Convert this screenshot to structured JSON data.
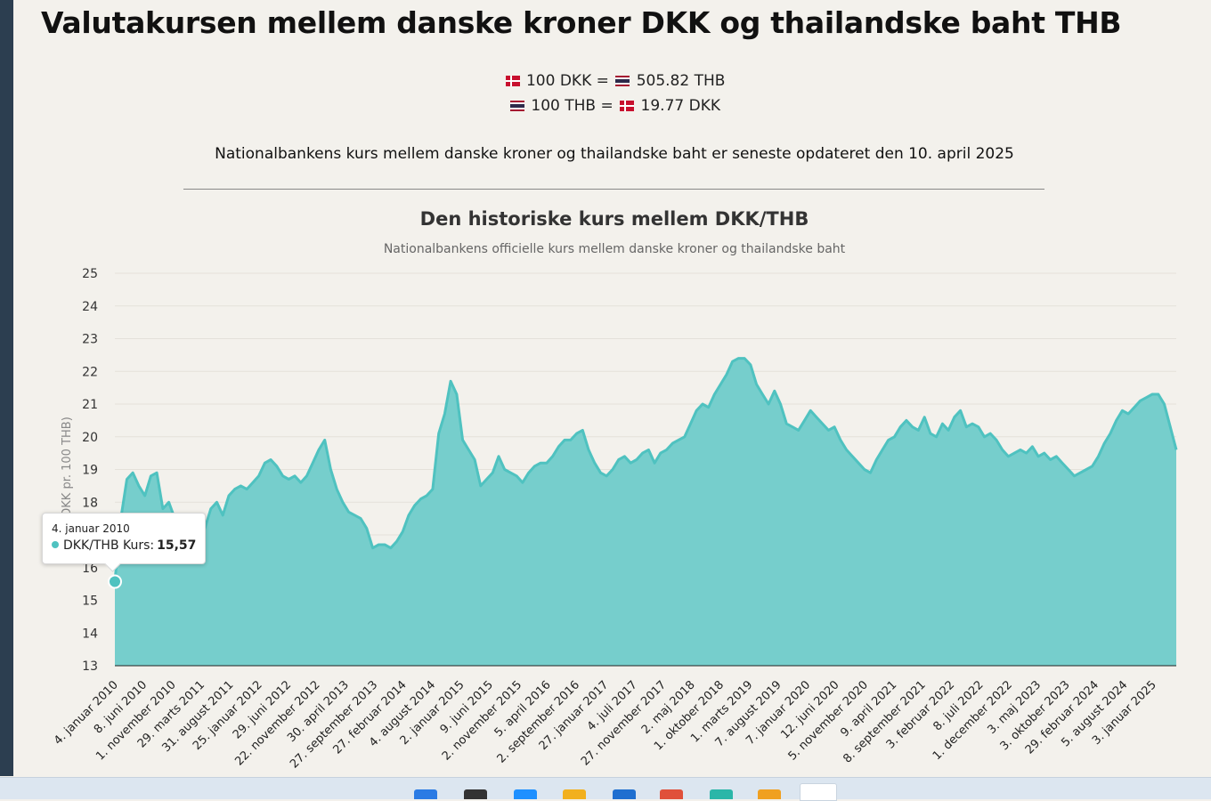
{
  "page": {
    "title": "Valutakursen mellem danske kroner DKK og thailandske baht THB",
    "rates": [
      {
        "left_flag": "flag-denmark-icon",
        "left": "100 DKK =",
        "right_flag": "flag-thailand-icon",
        "right": "505.82 THB"
      },
      {
        "left_flag": "flag-thailand-icon",
        "left": "100 THB =",
        "right_flag": "flag-denmark-icon",
        "right": "19.77 DKK"
      }
    ],
    "update_note": "Nationalbankens kurs mellem danske kroner og thailandske baht er seneste opdateret den 10. april 2025"
  },
  "tooltip": {
    "date": "4. januar 2010",
    "label": "DKK/THB Kurs:",
    "value": "15,57"
  },
  "taskbar": {
    "icons": [
      "windows-start-icon",
      "search-icon",
      "edge-icon",
      "file-explorer-icon",
      "store-icon",
      "notepad-icon",
      "chrome-icon",
      "photos-icon",
      "app-icon"
    ]
  },
  "chart_data": {
    "type": "area",
    "title": "Den historiske kurs mellem DKK/THB",
    "subtitle": "Nationalbankens officielle kurs mellem danske kroner og thailandske baht",
    "xlabel": "",
    "ylabel": "(DKK pr. 100 THB)",
    "ylim": [
      13,
      25
    ],
    "y_ticks": [
      13,
      14,
      15,
      16,
      17,
      18,
      19,
      20,
      21,
      22,
      23,
      24,
      25
    ],
    "grid": true,
    "legend": "none",
    "x_ticks": [
      "4. januar 2010",
      "8. juni 2010",
      "1. november 2010",
      "29. marts 2011",
      "31. august 2011",
      "25. januar 2012",
      "29. juni 2012",
      "22. november 2012",
      "30. april 2013",
      "27. september 2013",
      "27. februar 2014",
      "4. august 2014",
      "2. januar 2015",
      "9. juni 2015",
      "2. november 2015",
      "5. april 2016",
      "2. september 2016",
      "27. januar 2017",
      "4. juli 2017",
      "27. november 2017",
      "2. maj 2018",
      "1. oktober 2018",
      "1. marts 2019",
      "7. august 2019",
      "7. januar 2020",
      "12. juni 2020",
      "5. november 2020",
      "9. april 2021",
      "8. september 2021",
      "3. februar 2022",
      "8. juli 2022",
      "1. december 2022",
      "3. maj 2023",
      "3. oktober 2023",
      "29. februar 2024",
      "5. august 2024",
      "3. januar 2025"
    ],
    "series": [
      {
        "name": "DKK/THB Kurs",
        "color": "#4fc2c0",
        "fill": "#76cecc",
        "values": [
          15.57,
          17.5,
          18.7,
          18.9,
          18.5,
          18.2,
          18.8,
          18.9,
          17.8,
          18.0,
          17.5,
          17.3,
          17.0,
          16.8,
          17.5,
          17.2,
          17.8,
          18.0,
          17.6,
          18.2,
          18.4,
          18.5,
          18.4,
          18.6,
          18.8,
          19.2,
          19.3,
          19.1,
          18.8,
          18.7,
          18.8,
          18.6,
          18.8,
          19.2,
          19.6,
          19.9,
          19.0,
          18.4,
          18.0,
          17.7,
          17.6,
          17.5,
          17.2,
          16.6,
          16.7,
          16.7,
          16.6,
          16.8,
          17.1,
          17.6,
          17.9,
          18.1,
          18.2,
          18.4,
          20.1,
          20.7,
          21.7,
          21.3,
          19.9,
          19.6,
          19.3,
          18.5,
          18.7,
          18.9,
          19.4,
          19.0,
          18.9,
          18.8,
          18.6,
          18.9,
          19.1,
          19.2,
          19.2,
          19.4,
          19.7,
          19.9,
          19.9,
          20.1,
          20.2,
          19.6,
          19.2,
          18.9,
          18.8,
          19.0,
          19.3,
          19.4,
          19.2,
          19.3,
          19.5,
          19.6,
          19.2,
          19.5,
          19.6,
          19.8,
          19.9,
          20.0,
          20.4,
          20.8,
          21.0,
          20.9,
          21.3,
          21.6,
          21.9,
          22.3,
          22.4,
          22.4,
          22.2,
          21.6,
          21.3,
          21.0,
          21.4,
          21.0,
          20.4,
          20.3,
          20.2,
          20.5,
          20.8,
          20.6,
          20.4,
          20.2,
          20.3,
          19.9,
          19.6,
          19.4,
          19.2,
          19.0,
          18.9,
          19.3,
          19.6,
          19.9,
          20.0,
          20.3,
          20.5,
          20.3,
          20.2,
          20.6,
          20.1,
          20.0,
          20.4,
          20.2,
          20.6,
          20.8,
          20.3,
          20.4,
          20.3,
          20.0,
          20.1,
          19.9,
          19.6,
          19.4,
          19.5,
          19.6,
          19.5,
          19.7,
          19.4,
          19.5,
          19.3,
          19.4,
          19.2,
          19.0,
          18.8,
          18.9,
          19.0,
          19.1,
          19.4,
          19.8,
          20.1,
          20.5,
          20.8,
          20.7,
          20.9,
          21.1,
          21.2,
          21.3,
          21.3,
          21.0,
          20.3,
          19.6
        ]
      }
    ]
  }
}
